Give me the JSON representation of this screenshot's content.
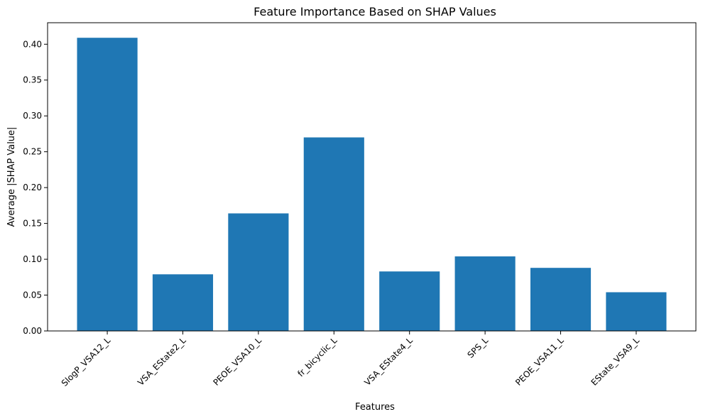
{
  "chart_data": {
    "type": "bar",
    "title": "Feature Importance Based on SHAP Values",
    "xlabel": "Features",
    "ylabel": "Average |SHAP Value|",
    "categories": [
      "SlogP_VSA12_L",
      "VSA_EState2_L",
      "PEOE_VSA10_L",
      "fr_bicyclic_L",
      "VSA_EState4_L",
      "SPS_L",
      "PEOE_VSA11_L",
      "EState_VSA9_L"
    ],
    "values": [
      0.409,
      0.079,
      0.164,
      0.27,
      0.083,
      0.104,
      0.088,
      0.054
    ],
    "ylim": [
      0,
      0.43
    ],
    "yticks": [
      "0.00",
      "0.05",
      "0.10",
      "0.15",
      "0.20",
      "0.25",
      "0.30",
      "0.35",
      "0.40"
    ],
    "bar_color": "#1f77b4",
    "grid": false,
    "legend": "none"
  }
}
